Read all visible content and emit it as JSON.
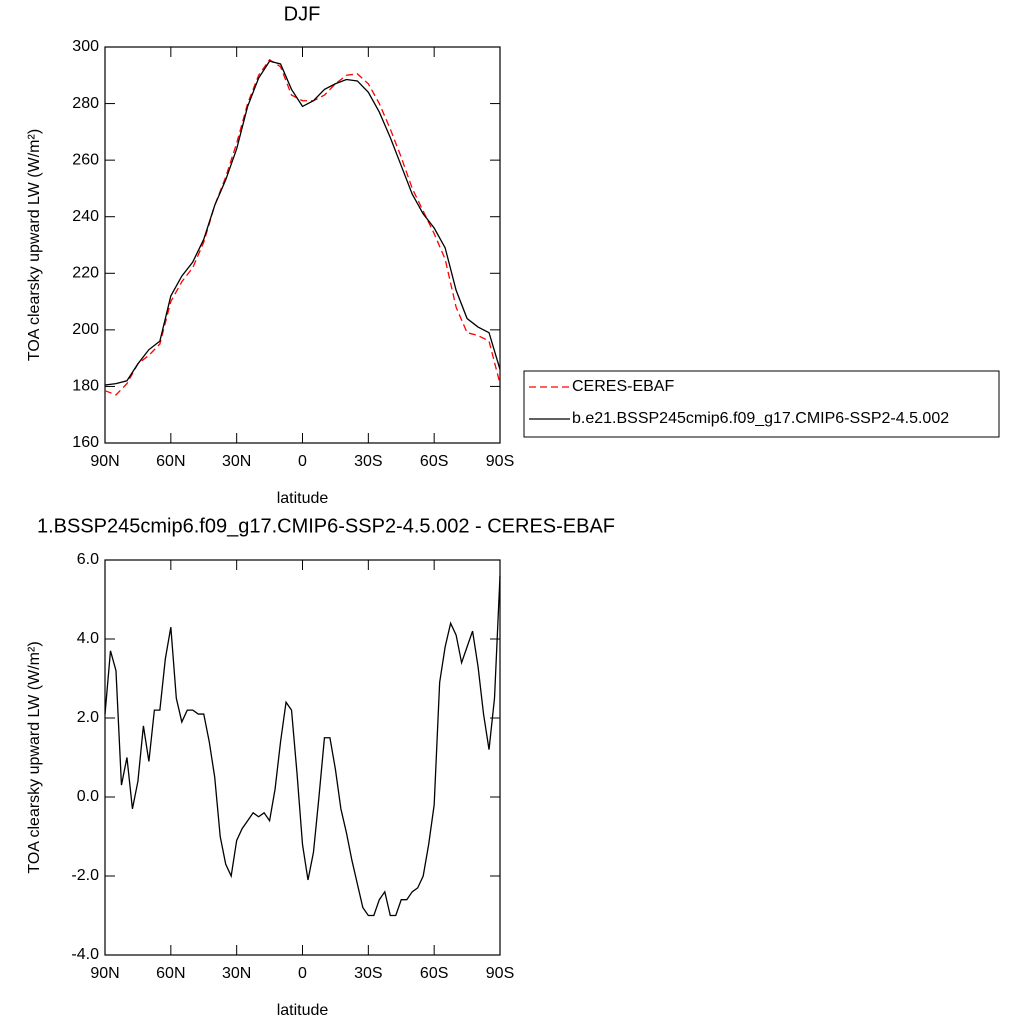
{
  "chart_data": [
    {
      "type": "line",
      "title": "DJF",
      "xlabel": "latitude",
      "ylabel": "TOA clearsky upward LW (W/m²)",
      "x": [
        90,
        85,
        80,
        75,
        70,
        65,
        60,
        55,
        50,
        45,
        40,
        35,
        30,
        25,
        20,
        15,
        10,
        5,
        0,
        -5,
        -10,
        -15,
        -20,
        -25,
        -30,
        -35,
        -40,
        -45,
        -50,
        -55,
        -60,
        -65,
        -70,
        -75,
        -80,
        -85,
        -90
      ],
      "series": [
        {
          "name": "CERES-EBAF",
          "color": "#ff0000",
          "line_style": "dashed",
          "values": [
            178.5,
            177,
            181,
            188,
            191,
            195,
            210,
            217,
            222,
            231,
            244,
            254,
            266,
            280,
            290,
            295.5,
            293,
            283,
            281,
            281,
            283,
            287,
            290,
            290.5,
            287,
            280,
            271,
            261,
            250,
            242,
            234,
            225,
            208,
            199,
            198,
            196,
            181
          ]
        },
        {
          "name": "b.e21.BSSP245cmip6.f09_g17.CMIP6-SSP2-4.5.002",
          "color": "#000000",
          "line_style": "solid",
          "values": [
            180.5,
            181,
            182,
            188,
            193,
            196,
            212,
            219,
            224,
            232,
            244,
            253,
            264,
            279,
            289,
            295,
            294,
            285,
            279,
            281,
            285,
            287,
            288.5,
            288,
            284,
            277,
            268,
            258,
            248,
            241,
            236,
            229,
            214,
            204,
            201,
            199,
            186
          ]
        }
      ],
      "xlim": [
        90,
        -90
      ],
      "xticks": [
        {
          "value": 90,
          "label": "90N"
        },
        {
          "value": 60,
          "label": "60N"
        },
        {
          "value": 30,
          "label": "30N"
        },
        0,
        {
          "value": -30,
          "label": "30S"
        },
        {
          "value": -60,
          "label": "60S"
        },
        {
          "value": -90,
          "label": "90S"
        }
      ],
      "ylim": [
        160,
        300
      ],
      "yticks": [
        160,
        180,
        200,
        220,
        240,
        260,
        280,
        300
      ],
      "legend": "right"
    },
    {
      "type": "line",
      "title": "1.BSSP245cmip6.f09_g17.CMIP6-SSP2-4.5.002 - CERES-EBAF",
      "xlabel": "latitude",
      "ylabel": "TOA clearsky upward LW (W/m²)",
      "x": [
        90,
        87.5,
        85,
        82.5,
        80,
        77.5,
        75,
        72.5,
        70,
        67.5,
        65,
        62.5,
        60,
        57.5,
        55,
        52.5,
        50,
        47.5,
        45,
        42.5,
        40,
        37.5,
        35,
        32.5,
        30,
        27.5,
        25,
        22.5,
        20,
        17.5,
        15,
        12.5,
        10,
        7.5,
        5,
        2.5,
        0,
        -2.5,
        -5,
        -7.5,
        -10,
        -12.5,
        -15,
        -17.5,
        -20,
        -22.5,
        -25,
        -27.5,
        -30,
        -32.5,
        -35,
        -37.5,
        -40,
        -42.5,
        -45,
        -47.5,
        -50,
        -52.5,
        -55,
        -57.5,
        -60,
        -62.5,
        -65,
        -67.5,
        -70,
        -72.5,
        -75,
        -77.5,
        -80,
        -82.5,
        -85,
        -87.5,
        -90
      ],
      "series": [
        {
          "color": "#000000",
          "line_style": "solid",
          "values": [
            2.1,
            3.7,
            3.2,
            0.3,
            1.0,
            -0.3,
            0.4,
            1.8,
            0.9,
            2.2,
            2.2,
            3.5,
            4.3,
            2.5,
            1.9,
            2.2,
            2.2,
            2.1,
            2.1,
            1.4,
            0.5,
            -1.0,
            -1.7,
            -2.0,
            -1.1,
            -0.8,
            -0.6,
            -0.4,
            -0.5,
            -0.4,
            -0.6,
            0.2,
            1.4,
            2.4,
            2.2,
            0.6,
            -1.2,
            -2.1,
            -1.4,
            0.0,
            1.5,
            1.5,
            0.7,
            -0.3,
            -0.9,
            -1.6,
            -2.2,
            -2.8,
            -3.0,
            -3.0,
            -2.6,
            -2.4,
            -3.0,
            -3.0,
            -2.6,
            -2.6,
            -2.4,
            -2.3,
            -2.0,
            -1.2,
            -0.2,
            2.9,
            3.8,
            4.4,
            4.1,
            3.4,
            3.8,
            4.2,
            3.3,
            2.1,
            1.2,
            2.5,
            5.6
          ]
        }
      ],
      "xlim": [
        90,
        -90
      ],
      "xticks": [
        {
          "value": 90,
          "label": "90N"
        },
        {
          "value": 60,
          "label": "60N"
        },
        {
          "value": 30,
          "label": "30N"
        },
        0,
        {
          "value": -30,
          "label": "30S"
        },
        {
          "value": -60,
          "label": "60S"
        },
        {
          "value": -90,
          "label": "90S"
        }
      ],
      "ylim": [
        -4,
        6
      ],
      "yticks": [
        {
          "value": -4,
          "label": "-4.0"
        },
        {
          "value": -2,
          "label": "-2.0"
        },
        {
          "value": 0,
          "label": "0.0"
        },
        {
          "value": 2,
          "label": "2.0"
        },
        {
          "value": 4,
          "label": "4.0"
        },
        {
          "value": 6,
          "label": "6.0"
        }
      ]
    }
  ]
}
